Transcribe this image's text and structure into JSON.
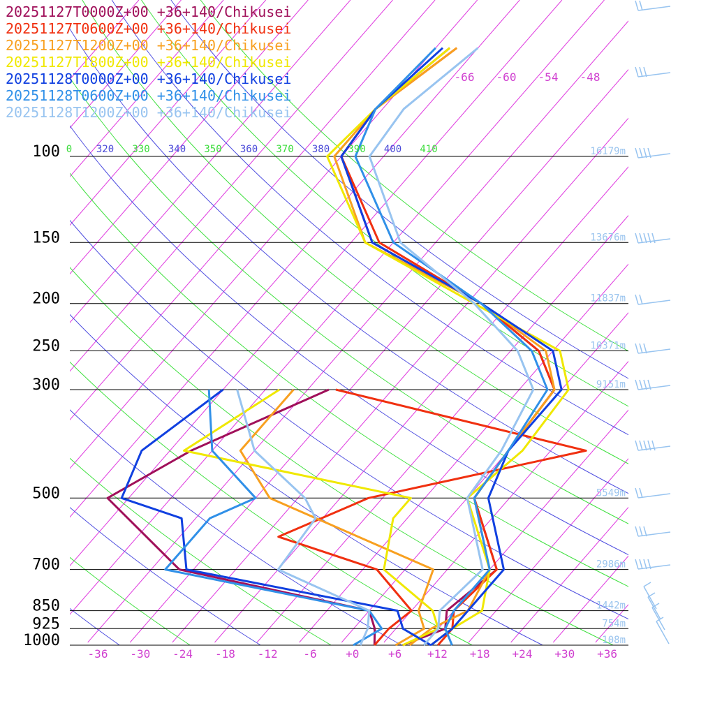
{
  "chart_data": {
    "type": "skew-t",
    "legend": [
      {
        "label": "20251127T0000Z+00 +36+140/Chikusei",
        "color": "#a0105a"
      },
      {
        "label": "20251127T0600Z+00 +36+140/Chikusei",
        "color": "#f03010"
      },
      {
        "label": "20251127T1200Z+00 +36+140/Chikusei",
        "color": "#f8a020"
      },
      {
        "label": "20251127T1800Z+00 +36+140/Chikusei",
        "color": "#f0e800"
      },
      {
        "label": "20251128T0000Z+00 +36+140/Chikusei",
        "color": "#1040e0"
      },
      {
        "label": "20251128T0600Z+00 +36+140/Chikusei",
        "color": "#3090e8"
      },
      {
        "label": "20251128T1200Z+00 +36+140/Chikusei",
        "color": "#98c4f0"
      }
    ],
    "pressure_levels": [
      "100",
      "150",
      "200",
      "250",
      "300",
      "500",
      "700",
      "850",
      "925",
      "1000"
    ],
    "height_labels": [
      "16179m",
      "13676m",
      "11837m",
      "10371m",
      "9151m",
      "5549m",
      "2986m",
      "1442m",
      "754m",
      "108m"
    ],
    "temperature_ticks": [
      "-36",
      "-30",
      "-24",
      "-18",
      "-12",
      "-6",
      "+0",
      "+6",
      "+12",
      "+18",
      "+24",
      "+30",
      "+36"
    ],
    "upper_temperature_labels": [
      "-66",
      "-60",
      "-54",
      "-48"
    ],
    "theta_labels": [
      {
        "text": "0",
        "color": "#3cdc3c"
      },
      {
        "text": "320",
        "color": "#4a4ad8"
      },
      {
        "text": "330",
        "color": "#3cdc3c"
      },
      {
        "text": "340",
        "color": "#4a4ad8"
      },
      {
        "text": "350",
        "color": "#3cdc3c"
      },
      {
        "text": "360",
        "color": "#4a4ad8"
      },
      {
        "text": "370",
        "color": "#3cdc3c"
      },
      {
        "text": "380",
        "color": "#4a4ad8"
      },
      {
        "text": "390",
        "color": "#3cdc3c"
      },
      {
        "text": "400",
        "color": "#4a4ad8"
      },
      {
        "text": "410",
        "color": "#3cdc3c"
      }
    ],
    "series": [
      {
        "name": "20251127T0000Z+00 +36+140/Chikusei",
        "temperature": [
          [
            1000,
            7
          ],
          [
            925,
            11
          ],
          [
            850,
            9
          ],
          [
            700,
            11
          ],
          [
            500,
            -1
          ],
          [
            400,
            -2
          ],
          [
            300,
            -3
          ],
          [
            250,
            -10
          ],
          [
            200,
            -24
          ],
          [
            150,
            -47
          ],
          [
            100,
            -62
          ],
          [
            80,
            -63
          ],
          [
            60,
            -60
          ]
        ],
        "dewpoint": [
          [
            1000,
            3
          ],
          [
            925,
            1
          ],
          [
            850,
            -2
          ],
          [
            700,
            -34
          ],
          [
            500,
            -53
          ],
          [
            400,
            -47
          ],
          [
            300,
            -35
          ]
        ]
      },
      {
        "name": "20251127T0600Z+00 +36+140/Chikusei",
        "temperature": [
          [
            1000,
            12
          ],
          [
            925,
            12
          ],
          [
            850,
            10
          ],
          [
            700,
            11
          ],
          [
            500,
            -1
          ],
          [
            400,
            -2
          ],
          [
            300,
            -3
          ],
          [
            250,
            -10
          ],
          [
            200,
            -24
          ],
          [
            150,
            -46
          ],
          [
            100,
            -62
          ],
          [
            80,
            -63
          ],
          [
            60,
            -59
          ]
        ],
        "dewpoint": [
          [
            1000,
            3
          ],
          [
            925,
            3
          ],
          [
            850,
            4
          ],
          [
            700,
            -6
          ],
          [
            600,
            -24
          ],
          [
            500,
            -16
          ],
          [
            400,
            9
          ],
          [
            300,
            -34
          ]
        ]
      },
      {
        "name": "20251127T1200Z+00 +36+140/Chikusei",
        "temperature": [
          [
            1000,
            8
          ],
          [
            925,
            9
          ],
          [
            850,
            12
          ],
          [
            700,
            10
          ],
          [
            500,
            -1
          ],
          [
            400,
            -2
          ],
          [
            300,
            -3
          ],
          [
            250,
            -9
          ],
          [
            200,
            -24
          ],
          [
            150,
            -48
          ],
          [
            100,
            -63
          ],
          [
            80,
            -63
          ],
          [
            60,
            -59
          ]
        ],
        "dewpoint": [
          [
            1000,
            6
          ],
          [
            925,
            8
          ],
          [
            850,
            5
          ],
          [
            700,
            2
          ],
          [
            500,
            -30
          ],
          [
            400,
            -40
          ],
          [
            300,
            -40
          ]
        ]
      },
      {
        "name": "20251127T1800Z+00 +36+140/Chikusei",
        "temperature": [
          [
            1000,
            11
          ],
          [
            925,
            12
          ],
          [
            850,
            14
          ],
          [
            700,
            10
          ],
          [
            500,
            -2
          ],
          [
            400,
            0
          ],
          [
            300,
            -1
          ],
          [
            250,
            -7
          ],
          [
            200,
            -25
          ],
          [
            150,
            -48
          ],
          [
            100,
            -64
          ],
          [
            80,
            -63
          ],
          [
            60,
            -60
          ]
        ],
        "dewpoint": [
          [
            1000,
            7
          ],
          [
            925,
            10
          ],
          [
            850,
            7
          ],
          [
            700,
            -5
          ],
          [
            550,
            -10
          ],
          [
            500,
            -10
          ],
          [
            400,
            -48
          ],
          [
            300,
            -42
          ]
        ]
      },
      {
        "name": "20251128T0000Z+00 +36+140/Chikusei",
        "temperature": [
          [
            1000,
            11
          ],
          [
            925,
            12
          ],
          [
            850,
            12
          ],
          [
            700,
            12
          ],
          [
            500,
            1
          ],
          [
            400,
            -2
          ],
          [
            300,
            -2
          ],
          [
            250,
            -8
          ],
          [
            200,
            -24
          ],
          [
            150,
            -47
          ],
          [
            100,
            -62
          ],
          [
            80,
            -63
          ],
          [
            60,
            -61
          ]
        ],
        "dewpoint": [
          [
            1000,
            11
          ],
          [
            925,
            5
          ],
          [
            850,
            2
          ],
          [
            700,
            -33
          ],
          [
            550,
            -40
          ],
          [
            500,
            -51
          ],
          [
            400,
            -54
          ],
          [
            300,
            -50
          ]
        ]
      },
      {
        "name": "20251128T0600Z+00 +36+140/Chikusei",
        "temperature": [
          [
            1000,
            14
          ],
          [
            925,
            11
          ],
          [
            850,
            10
          ],
          [
            700,
            10
          ],
          [
            500,
            -1
          ],
          [
            400,
            -2
          ],
          [
            300,
            -4
          ],
          [
            250,
            -11
          ],
          [
            200,
            -24
          ],
          [
            150,
            -44
          ],
          [
            100,
            -60
          ],
          [
            80,
            -63
          ],
          [
            60,
            -62
          ]
        ],
        "dewpoint": [
          [
            1000,
            0
          ],
          [
            925,
            2
          ],
          [
            850,
            -2
          ],
          [
            700,
            -36
          ],
          [
            550,
            -36
          ],
          [
            500,
            -32
          ],
          [
            400,
            -44
          ],
          [
            300,
            -52
          ]
        ]
      },
      {
        "name": "20251128T1200Z+00 +36+140/Chikusei",
        "temperature": [
          [
            1000,
            10
          ],
          [
            925,
            10
          ],
          [
            850,
            8
          ],
          [
            700,
            9
          ],
          [
            500,
            -2
          ],
          [
            400,
            -3
          ],
          [
            300,
            -6
          ],
          [
            250,
            -13
          ],
          [
            200,
            -25
          ],
          [
            150,
            -43
          ],
          [
            100,
            -58
          ],
          [
            80,
            -59
          ],
          [
            60,
            -56
          ]
        ],
        "dewpoint": [
          [
            1000,
            1
          ],
          [
            925,
            0
          ],
          [
            850,
            -2
          ],
          [
            700,
            -20
          ],
          [
            550,
            -21
          ],
          [
            500,
            -25
          ],
          [
            400,
            -38
          ],
          [
            300,
            -48
          ]
        ]
      }
    ],
    "xlabel": "",
    "ylabel": "",
    "xlim": [
      -40,
      40
    ],
    "ylim": [
      1000,
      100
    ],
    "axis_scale": "log-pressure, skewed temperature",
    "grid": true
  }
}
